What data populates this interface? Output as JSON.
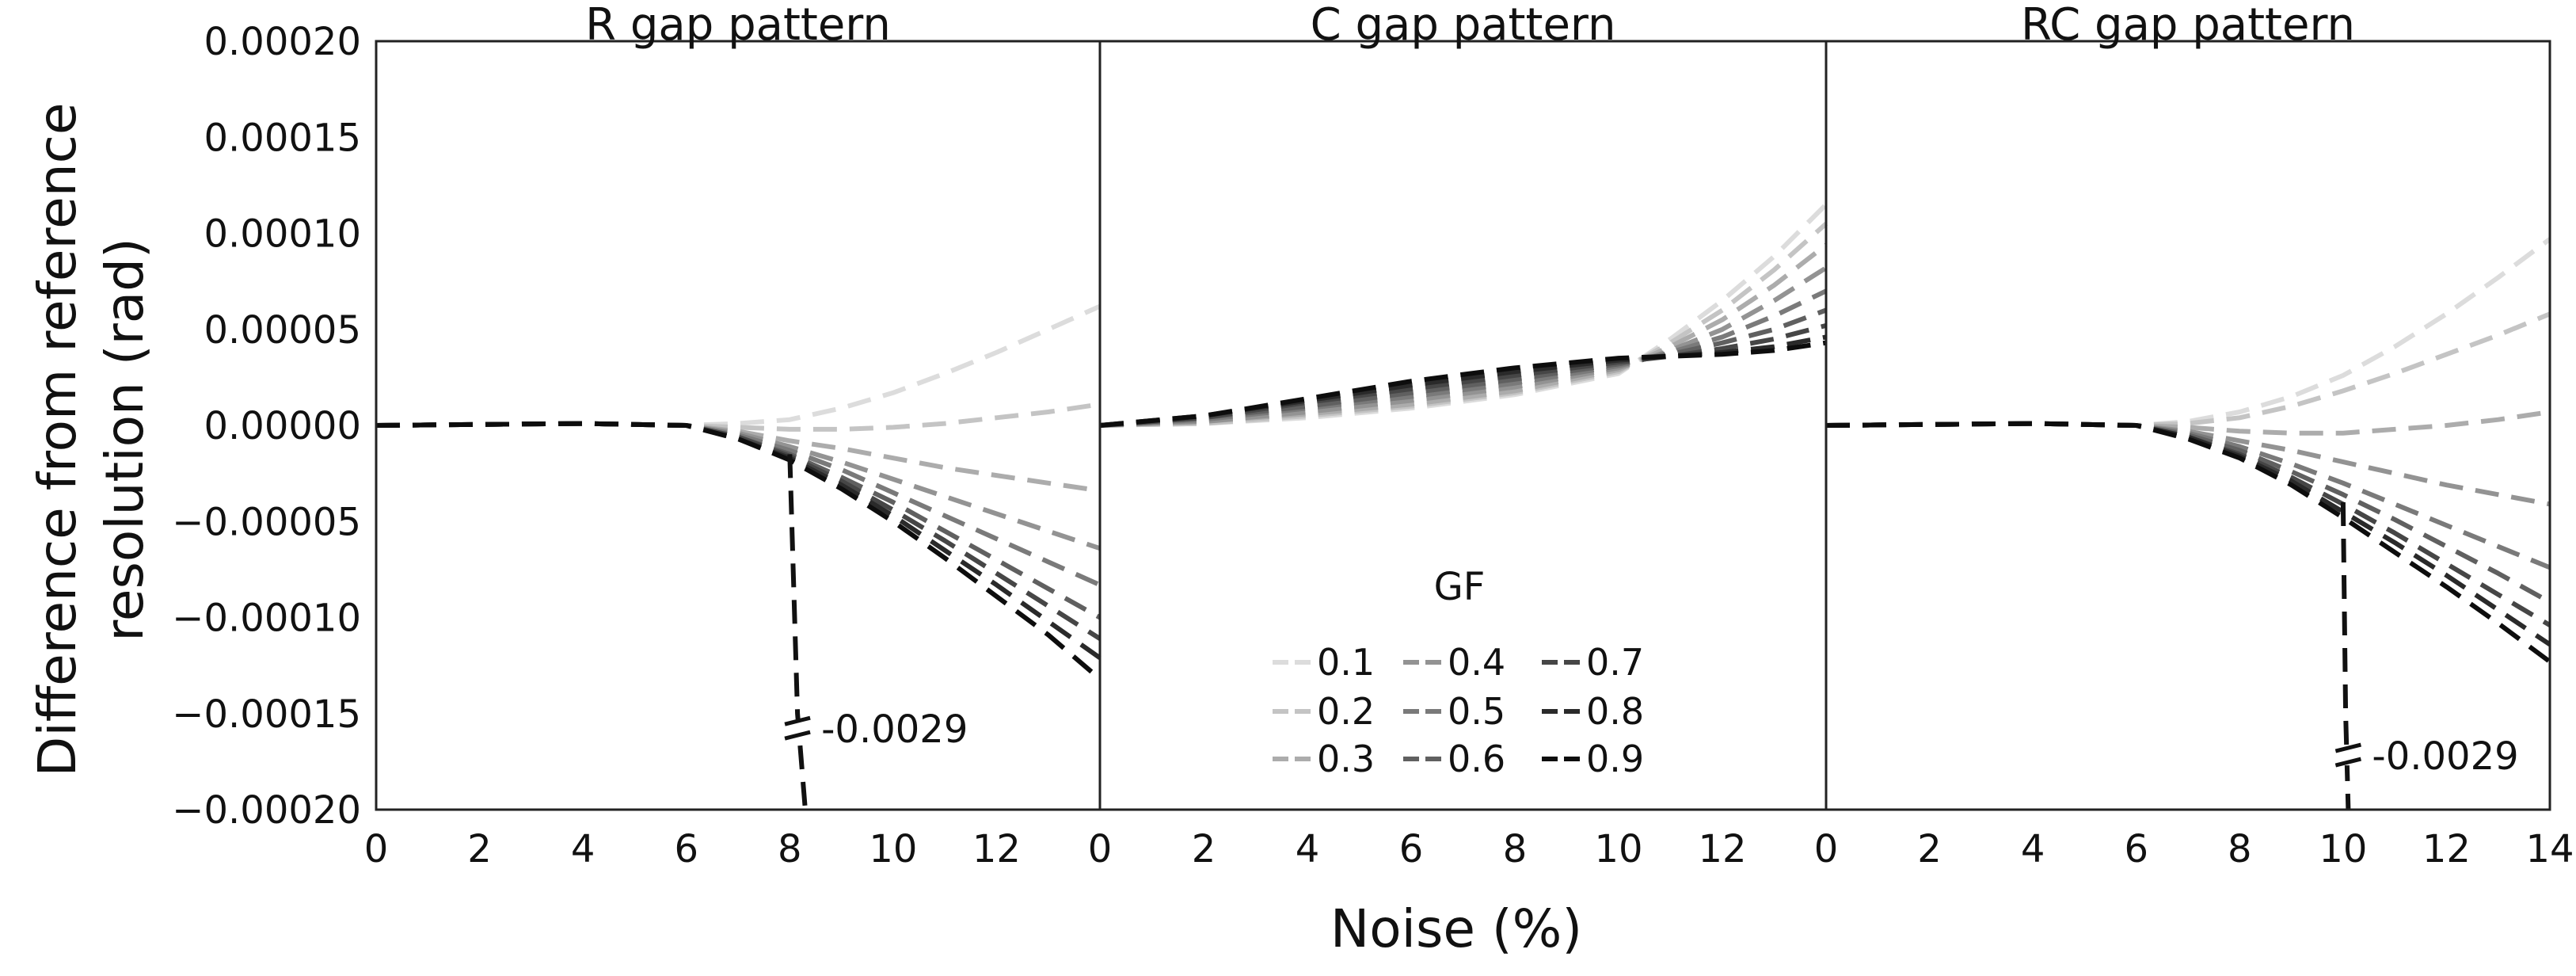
{
  "chart_data": {
    "type": "line",
    "xlabel": "Noise (%)",
    "ylabel_lines": [
      "Difference from reference",
      "resolution (rad)"
    ],
    "xlim": [
      0,
      14
    ],
    "ylim": [
      -0.0002,
      0.0002
    ],
    "x_ticks": [
      "0",
      "2",
      "4",
      "6",
      "8",
      "10",
      "12",
      "14"
    ],
    "y_ticks": [
      "0.00020",
      "0.00015",
      "0.00010",
      "0.00005",
      "0.00000",
      "−0.00005",
      "−0.00010",
      "−0.00015",
      "−0.00020"
    ],
    "y_tick_values": [
      0.0002,
      0.00015,
      0.0001,
      5e-05,
      0,
      -5e-05,
      -0.0001,
      -0.00015,
      -0.0002
    ],
    "legend": {
      "title": "GF",
      "entries": [
        {
          "label": "0.1",
          "color": "#dcdcdc"
        },
        {
          "label": "0.2",
          "color": "#c4c4c4"
        },
        {
          "label": "0.3",
          "color": "#acacac"
        },
        {
          "label": "0.4",
          "color": "#939393"
        },
        {
          "label": "0.5",
          "color": "#7a7a7a"
        },
        {
          "label": "0.6",
          "color": "#606060"
        },
        {
          "label": "0.7",
          "color": "#464646"
        },
        {
          "label": "0.8",
          "color": "#2a2a2a"
        },
        {
          "label": "0.9",
          "color": "#0d0d0d"
        }
      ]
    },
    "panels": [
      {
        "title": "R gap pattern",
        "x_tick_labels": [
          "0",
          "2",
          "4",
          "6",
          "8",
          "10",
          "12",
          ""
        ],
        "annotation": {
          "text": "-0.0029",
          "x": 8.15,
          "y": -0.000158
        },
        "outlier": {
          "x": [
            8.0,
            8.15,
            8.3
          ],
          "y": [
            -1.5e-05,
            -0.00015,
            -0.0002
          ]
        },
        "series": [
          {
            "name": "0.1",
            "x": [
              0,
              4,
              6,
              7,
              8,
              9,
              10,
              11,
              12,
              13,
              14
            ],
            "y": [
              0,
              1e-06,
              0,
              1e-06,
              3e-06,
              9e-06,
              1.7e-05,
              2.7e-05,
              3.8e-05,
              5e-05,
              6.2e-05
            ]
          },
          {
            "name": "0.2",
            "x": [
              0,
              4,
              6,
              7,
              8,
              9,
              10,
              11,
              12,
              13,
              14
            ],
            "y": [
              0,
              1e-06,
              0,
              -1e-06,
              -2e-06,
              -2e-06,
              -1e-06,
              1e-06,
              4e-06,
              7e-06,
              1.1e-05
            ]
          },
          {
            "name": "0.3",
            "x": [
              0,
              4,
              6,
              7,
              8,
              9,
              10,
              11,
              12,
              13,
              14
            ],
            "y": [
              0,
              1e-06,
              0,
              -3e-06,
              -8e-06,
              -1.2e-05,
              -1.7e-05,
              -2.2e-05,
              -2.6e-05,
              -3e-05,
              -3.4e-05
            ]
          },
          {
            "name": "0.4",
            "x": [
              0,
              4,
              6,
              7,
              8,
              9,
              10,
              11,
              12,
              13,
              14
            ],
            "y": [
              0,
              1e-06,
              0,
              -4e-06,
              -1.1e-05,
              -1.9e-05,
              -2.8e-05,
              -3.7e-05,
              -4.6e-05,
              -5.5e-05,
              -6.4e-05
            ]
          },
          {
            "name": "0.5",
            "x": [
              0,
              4,
              6,
              7,
              8,
              9,
              10,
              11,
              12,
              13,
              14
            ],
            "y": [
              0,
              1e-06,
              0,
              -5e-06,
              -1.3e-05,
              -2.3e-05,
              -3.5e-05,
              -4.7e-05,
              -5.9e-05,
              -7.1e-05,
              -8.3e-05
            ]
          },
          {
            "name": "0.6",
            "x": [
              0,
              4,
              6,
              7,
              8,
              9,
              10,
              11,
              12,
              13,
              14
            ],
            "y": [
              0,
              1e-06,
              0,
              -6e-06,
              -1.5e-05,
              -2.7e-05,
              -4e-05,
              -5.5e-05,
              -7e-05,
              -8.5e-05,
              -0.0001
            ]
          },
          {
            "name": "0.7",
            "x": [
              0,
              4,
              6,
              7,
              8,
              9,
              10,
              11,
              12,
              13,
              14
            ],
            "y": [
              0,
              1e-06,
              0,
              -6e-06,
              -1.6e-05,
              -2.9e-05,
              -4.4e-05,
              -6e-05,
              -7.7e-05,
              -9.4e-05,
              -0.000111
            ]
          },
          {
            "name": "0.8",
            "x": [
              0,
              4,
              6,
              7,
              8,
              9,
              10,
              11,
              12,
              13,
              14
            ],
            "y": [
              0,
              1e-06,
              0,
              -7e-06,
              -1.7e-05,
              -3.1e-05,
              -4.7e-05,
              -6.5e-05,
              -8.3e-05,
              -0.000102,
              -0.000121
            ]
          },
          {
            "name": "0.9",
            "x": [
              0,
              4,
              6,
              7,
              8,
              9,
              10,
              11,
              12,
              13,
              14
            ],
            "y": [
              0,
              1e-06,
              0,
              -7e-06,
              -1.8e-05,
              -3.3e-05,
              -5e-05,
              -6.9e-05,
              -8.9e-05,
              -0.000109,
              -0.000132
            ]
          }
        ]
      },
      {
        "title": "C gap pattern",
        "x_tick_labels": [
          "0",
          "2",
          "4",
          "6",
          "8",
          "10",
          "12",
          ""
        ],
        "series": [
          {
            "name": "0.1",
            "x": [
              0,
              2,
              4,
              6,
              8,
              10,
              11,
              12,
              13,
              14
            ],
            "y": [
              0,
              1e-06,
              4e-06,
              9e-06,
              1.6e-05,
              2.7e-05,
              4.5e-05,
              6.5e-05,
              8.8e-05,
              0.000115
            ]
          },
          {
            "name": "0.2",
            "x": [
              0,
              2,
              4,
              6,
              8,
              10,
              11,
              12,
              13,
              14
            ],
            "y": [
              0,
              1e-06,
              5e-06,
              1e-05,
              1.7e-05,
              2.8e-05,
              4.3e-05,
              6e-05,
              8.1e-05,
              0.000105
            ]
          },
          {
            "name": "0.3",
            "x": [
              0,
              2,
              4,
              6,
              8,
              10,
              11,
              12,
              13,
              14
            ],
            "y": [
              0,
              2e-06,
              6e-06,
              1.1e-05,
              1.8e-05,
              2.9e-05,
              4.1e-05,
              5.5e-05,
              7.3e-05,
              9.4e-05
            ]
          },
          {
            "name": "0.4",
            "x": [
              0,
              2,
              4,
              6,
              8,
              10,
              11,
              12,
              13,
              14
            ],
            "y": [
              0,
              2e-06,
              7e-06,
              1.3e-05,
              2e-05,
              3e-05,
              3.9e-05,
              5e-05,
              6.5e-05,
              8.2e-05
            ]
          },
          {
            "name": "0.5",
            "x": [
              0,
              2,
              4,
              6,
              8,
              10,
              11,
              12,
              13,
              14
            ],
            "y": [
              0,
              3e-06,
              9e-06,
              1.5e-05,
              2.2e-05,
              3.1e-05,
              3.8e-05,
              4.6e-05,
              5.7e-05,
              7e-05
            ]
          },
          {
            "name": "0.6",
            "x": [
              0,
              2,
              4,
              6,
              8,
              10,
              11,
              12,
              13,
              14
            ],
            "y": [
              0,
              4e-06,
              1e-05,
              1.7e-05,
              2.4e-05,
              3.2e-05,
              3.7e-05,
              4.3e-05,
              5e-05,
              6e-05
            ]
          },
          {
            "name": "0.7",
            "x": [
              0,
              2,
              4,
              6,
              8,
              10,
              11,
              12,
              13,
              14
            ],
            "y": [
              0,
              4e-06,
              1.2e-05,
              1.9e-05,
              2.6e-05,
              3.3e-05,
              3.6e-05,
              4e-05,
              4.5e-05,
              5.2e-05
            ]
          },
          {
            "name": "0.8",
            "x": [
              0,
              2,
              4,
              6,
              8,
              10,
              11,
              12,
              13,
              14
            ],
            "y": [
              0,
              5e-06,
              1.3e-05,
              2.1e-05,
              2.8e-05,
              3.4e-05,
              3.6e-05,
              3.8e-05,
              4.1e-05,
              4.6e-05
            ]
          },
          {
            "name": "0.9",
            "x": [
              0,
              2,
              4,
              6,
              8,
              10,
              11,
              12,
              13,
              14
            ],
            "y": [
              0,
              5e-06,
              1.4e-05,
              2.3e-05,
              3e-05,
              3.5e-05,
              3.6e-05,
              3.7e-05,
              3.9e-05,
              4.3e-05
            ]
          }
        ]
      },
      {
        "title": "RC gap pattern",
        "x_tick_labels": [
          "0",
          "2",
          "4",
          "6",
          "8",
          "10",
          "12",
          "14"
        ],
        "annotation": {
          "text": "-0.0029",
          "x": 10.1,
          "y": -0.000172
        },
        "outlier": {
          "x": [
            10.0,
            10.05,
            10.1
          ],
          "y": [
            -4e-05,
            -0.00015,
            -0.0002
          ]
        },
        "series": [
          {
            "name": "0.1",
            "x": [
              0,
              4,
              6,
              7,
              8,
              9,
              10,
              11,
              12,
              13,
              14
            ],
            "y": [
              0,
              1e-06,
              0,
              2e-06,
              7e-06,
              1.5e-05,
              2.6e-05,
              4.1e-05,
              5.8e-05,
              7.7e-05,
              9.7e-05
            ]
          },
          {
            "name": "0.2",
            "x": [
              0,
              4,
              6,
              7,
              8,
              9,
              10,
              11,
              12,
              13,
              14
            ],
            "y": [
              0,
              1e-06,
              0,
              1e-06,
              4e-06,
              1e-05,
              1.8e-05,
              2.7e-05,
              3.7e-05,
              4.7e-05,
              5.8e-05
            ]
          },
          {
            "name": "0.3",
            "x": [
              0,
              4,
              6,
              7,
              8,
              9,
              10,
              11,
              12,
              13,
              14
            ],
            "y": [
              0,
              1e-06,
              0,
              -1e-06,
              -3e-06,
              -4e-06,
              -4e-06,
              -2e-06,
              0,
              3e-06,
              7e-06
            ]
          },
          {
            "name": "0.4",
            "x": [
              0,
              4,
              6,
              7,
              8,
              9,
              10,
              11,
              12,
              13,
              14
            ],
            "y": [
              0,
              1e-06,
              0,
              -3e-06,
              -8e-06,
              -1.3e-05,
              -1.9e-05,
              -2.5e-05,
              -3.1e-05,
              -3.6e-05,
              -4.1e-05
            ]
          },
          {
            "name": "0.5",
            "x": [
              0,
              4,
              6,
              7,
              8,
              9,
              10,
              11,
              12,
              13,
              14
            ],
            "y": [
              0,
              1e-06,
              0,
              -4e-06,
              -1.1e-05,
              -2e-05,
              -3e-05,
              -4.1e-05,
              -5.2e-05,
              -6.3e-05,
              -7.4e-05
            ]
          },
          {
            "name": "0.6",
            "x": [
              0,
              4,
              6,
              7,
              8,
              9,
              10,
              11,
              12,
              13,
              14
            ],
            "y": [
              0,
              1e-06,
              0,
              -5e-06,
              -1.3e-05,
              -2.4e-05,
              -3.6e-05,
              -4.9e-05,
              -6.3e-05,
              -7.7e-05,
              -9.2e-05
            ]
          },
          {
            "name": "0.7",
            "x": [
              0,
              4,
              6,
              7,
              8,
              9,
              10,
              11,
              12,
              13,
              14
            ],
            "y": [
              0,
              1e-06,
              0,
              -6e-06,
              -1.5e-05,
              -2.7e-05,
              -4.1e-05,
              -5.6e-05,
              -7.2e-05,
              -8.8e-05,
              -0.000104
            ]
          },
          {
            "name": "0.8",
            "x": [
              0,
              4,
              6,
              7,
              8,
              9,
              10,
              11,
              12,
              13,
              14
            ],
            "y": [
              0,
              1e-06,
              0,
              -6e-06,
              -1.6e-05,
              -2.9e-05,
              -4.5e-05,
              -6.1e-05,
              -7.8e-05,
              -9.6e-05,
              -0.000114
            ]
          },
          {
            "name": "0.9",
            "x": [
              0,
              4,
              6,
              7,
              8,
              9,
              10,
              11,
              12,
              13,
              14
            ],
            "y": [
              0,
              1e-06,
              0,
              -7e-06,
              -1.7e-05,
              -3.1e-05,
              -4.8e-05,
              -6.6e-05,
              -8.4e-05,
              -0.000103,
              -0.000123
            ]
          }
        ]
      }
    ]
  }
}
